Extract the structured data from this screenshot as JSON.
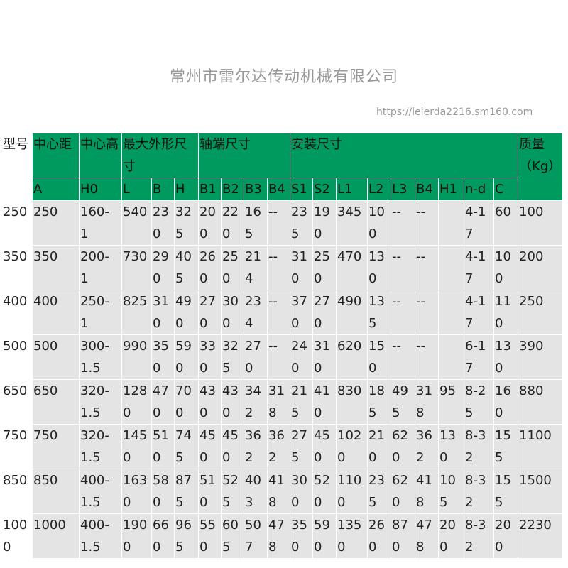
{
  "header_row1": [
    "型号",
    "中心距",
    "中心高",
    "最大外形尺寸",
    "轴端尺寸",
    "安装尺寸",
    "质量（Kg）"
  ],
  "header_row2": [
    "A",
    "H0",
    "L",
    "B",
    "H",
    "B1",
    "B2",
    "B3",
    "B4",
    "S1",
    "S2",
    "L1",
    "L2",
    "L3",
    "B4",
    "H1",
    "n-d",
    "C"
  ],
  "rows": [
    [
      "250",
      "250",
      "160-1",
      "540",
      "230",
      "325",
      "200",
      "220",
      "165",
      "--",
      "235",
      "190",
      "345",
      "100",
      "--",
      "--",
      "",
      "4-17",
      "60",
      "100"
    ],
    [
      "350",
      "350",
      "200-1",
      "730",
      "290",
      "405",
      "260",
      "250",
      "214",
      "--",
      "310",
      "250",
      "470",
      "130",
      "--",
      "--",
      "",
      "4-17",
      "100",
      "200"
    ],
    [
      "400",
      "400",
      "250-1",
      "825",
      "310",
      "490",
      "270",
      "300",
      "234",
      "--",
      "370",
      "270",
      "490",
      "135",
      "--",
      "--",
      "",
      "4-17",
      "110",
      "250"
    ],
    [
      "500",
      "500",
      "300-1.5",
      "990",
      "350",
      "590",
      "330",
      "325",
      "270",
      "--",
      "240",
      "310",
      "620",
      "150",
      "--",
      "--",
      "",
      "6-17",
      "130",
      "390"
    ],
    [
      "650",
      "650",
      "320-1.5",
      "1280",
      "470",
      "700",
      "430",
      "430",
      "342",
      "318",
      "215",
      "410",
      "830",
      "185",
      "495",
      "318",
      "95",
      "8-25",
      "160",
      "880"
    ],
    [
      "750",
      "750",
      "320-1.5",
      "1450",
      "510",
      "745",
      "450",
      "450",
      "362",
      "362",
      "275",
      "450",
      "1020",
      "210",
      "620",
      "362",
      "130",
      "8-32",
      "155",
      "1100"
    ],
    [
      "850",
      "850",
      "400-1.5",
      "1630",
      "580",
      "875",
      "510",
      "525",
      "403",
      "418",
      "300",
      "520",
      "1100",
      "235",
      "620",
      "418",
      "105",
      "8-32",
      "155",
      "1500"
    ],
    [
      "1000",
      "1000",
      "400-1.5",
      "1900",
      "660",
      "965",
      "550",
      "605",
      "507",
      "478",
      "350",
      "590",
      "1350",
      "260",
      "870",
      "478",
      "200",
      "8-32",
      "200",
      "2230"
    ]
  ],
  "watermark": "常州市雷尔达传动机械有限公司",
  "watermark_url": "https://leierda2216.sm160.com",
  "colors": {
    "header": "#009a5f",
    "row": "#e4e4e4"
  }
}
